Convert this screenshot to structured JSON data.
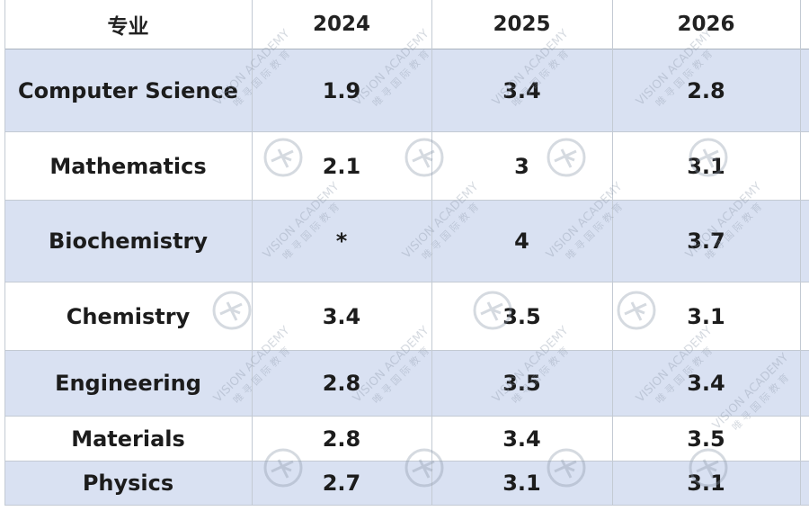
{
  "table": {
    "headers": [
      "专业",
      "2024",
      "2025",
      "2026"
    ],
    "rows": [
      {
        "major": "Computer Science",
        "y2024": "1.9",
        "y2025": "3.4",
        "y2026": "2.8"
      },
      {
        "major": "Mathematics",
        "y2024": "2.1",
        "y2025": "3",
        "y2026": "3.1"
      },
      {
        "major": "Biochemistry",
        "y2024": "*",
        "y2025": "4",
        "y2026": "3.7"
      },
      {
        "major": "Chemistry",
        "y2024": "3.4",
        "y2025": "3.5",
        "y2026": "3.1"
      },
      {
        "major": "Engineering",
        "y2024": "2.8",
        "y2025": "3.5",
        "y2026": "3.4"
      },
      {
        "major": "Materials",
        "y2024": "2.8",
        "y2025": "3.4",
        "y2026": "3.5"
      },
      {
        "major": "Physics",
        "y2024": "2.7",
        "y2025": "3.1",
        "y2026": "3.1"
      }
    ]
  },
  "watermark": {
    "text_en": "VISION ACADEMY",
    "text_cn": "唯 寻 国 际 教 育",
    "icon": "vision-academy-logo-icon"
  },
  "colors": {
    "band": "#d9e1f2",
    "grid": "#c3cad3",
    "text": "#1c1c1c"
  }
}
